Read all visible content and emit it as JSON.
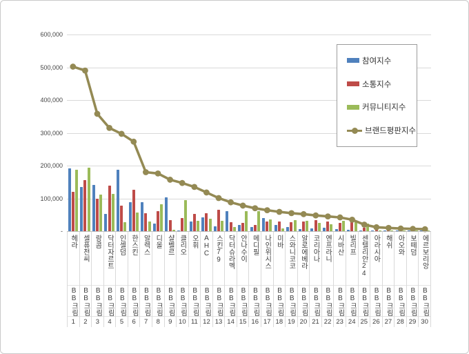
{
  "colors": {
    "participation_blue": "#4f81bd",
    "communication_red": "#be4b48",
    "community_green": "#9bbb59",
    "reputation_olive": "#948a54",
    "gridline": "#d9d9d9",
    "axis_text": "#3d3d3d"
  },
  "legend": {
    "position": "top-right",
    "items": [
      {
        "key": "participation",
        "label": "참여지수",
        "color": "#4f81bd",
        "type": "bar"
      },
      {
        "key": "communication",
        "label": "소통지수",
        "color": "#be4b48",
        "type": "bar"
      },
      {
        "key": "community",
        "label": "커뮤니티지수",
        "color": "#9bbb59",
        "type": "bar"
      },
      {
        "key": "reputation",
        "label": "브랜드평판지수",
        "color": "#948a54",
        "type": "line"
      }
    ]
  },
  "y_axis": {
    "tick_labels": [
      "600,000",
      "500,000",
      "400,000",
      "300,000",
      "200,000",
      "100,000",
      "-"
    ],
    "tick_values": [
      600000,
      500000,
      400000,
      300000,
      200000,
      100000,
      0
    ]
  },
  "x_axis": {
    "group_label": "BB크림",
    "ranks": [
      "1",
      "2",
      "3",
      "4",
      "5",
      "6",
      "7",
      "8",
      "9",
      "10",
      "11",
      "12",
      "13",
      "14",
      "15",
      "16",
      "17",
      "18",
      "19",
      "20",
      "21",
      "22",
      "23",
      "24",
      "25",
      "26",
      "27",
      "28",
      "29",
      "30"
    ]
  },
  "chart_data": {
    "type": "bar",
    "title": "",
    "grid": "horizontal",
    "legend_position": "top-right",
    "ylim": [
      0,
      600000
    ],
    "categories": [
      "헤라",
      "셀퓨전씨",
      "랑콤",
      "닥터자르트",
      "인셀덤",
      "한스킨",
      "알렉스",
      "디올",
      "샬벨르",
      "클리오",
      "오휘",
      "AHC",
      "스킨79",
      "닥터슈라멕",
      "안나수이",
      "메디필",
      "나인위시스",
      "미바",
      "스와니코코",
      "알로에베라",
      "코리아나",
      "엔프라니",
      "시바산",
      "빌리프",
      "센텔리안24",
      "아라시아",
      "해쉬",
      "아오와",
      "보떼덤",
      "에르보리앙"
    ],
    "category_suffix": "BB크림",
    "series": [
      {
        "name": "참여지수",
        "type": "bar",
        "color": "#4f81bd",
        "values": [
          191000,
          135000,
          142000,
          53000,
          187000,
          89000,
          88000,
          24000,
          103000,
          3000,
          30000,
          43000,
          15000,
          61000,
          18000,
          12000,
          40000,
          20000,
          12000,
          6000,
          8000,
          10000,
          6000,
          4000,
          3000,
          2000,
          3000,
          2000,
          1000,
          1000
        ]
      },
      {
        "name": "소통지수",
        "type": "bar",
        "color": "#be4b48",
        "values": [
          121000,
          156000,
          98000,
          139000,
          77000,
          126000,
          54000,
          62000,
          34000,
          40000,
          52000,
          55000,
          65000,
          27000,
          26000,
          20000,
          30000,
          30000,
          27000,
          30000,
          33000,
          30000,
          26000,
          32000,
          11000,
          4000,
          2000,
          3000,
          2000,
          2000
        ]
      },
      {
        "name": "커뮤니티지수",
        "type": "bar",
        "color": "#9bbb59",
        "values": [
          188000,
          194000,
          112000,
          114000,
          28000,
          57000,
          30000,
          82000,
          5000,
          94000,
          31000,
          38000,
          32000,
          12000,
          62000,
          61000,
          36000,
          8000,
          33000,
          32000,
          26000,
          22000,
          32000,
          30000,
          24000,
          3000,
          2000,
          2000,
          2000,
          1000
        ]
      },
      {
        "name": "브랜드평판지수",
        "type": "line",
        "color": "#948a54",
        "values": [
          502000,
          490000,
          358000,
          315000,
          297000,
          273000,
          180000,
          176000,
          157000,
          147000,
          135000,
          118000,
          101000,
          88000,
          78000,
          70000,
          64000,
          59000,
          55000,
          52000,
          48000,
          45000,
          42000,
          35000,
          20000,
          12000,
          10000,
          8000,
          7000,
          6000
        ]
      }
    ]
  }
}
